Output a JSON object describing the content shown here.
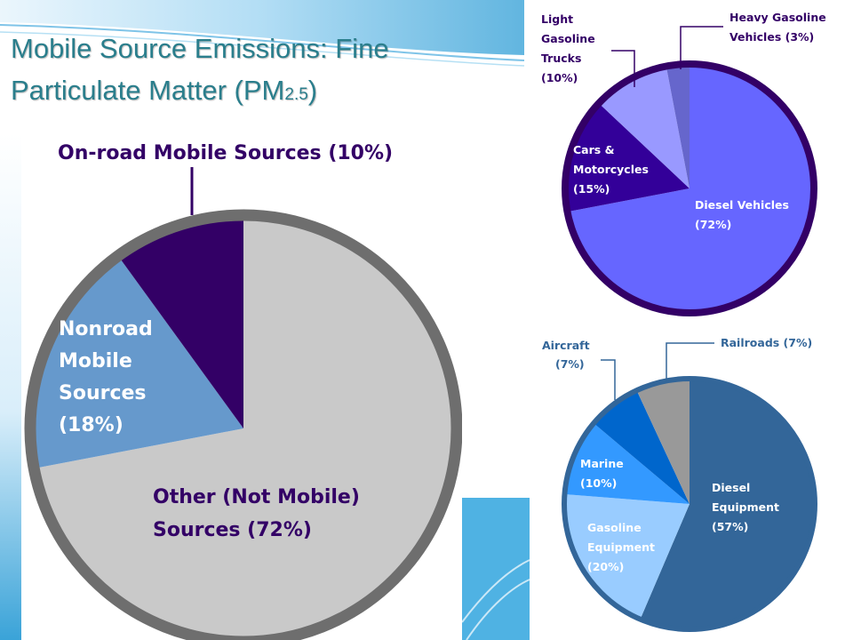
{
  "title": {
    "line1": "Mobile Source Emissions: Fine",
    "line2": "Particulate Matter (PM",
    "subscript": "2.5",
    "close": ")"
  },
  "colors": {
    "title": "#2a7e8c",
    "background_swoosh": "#3aa3d8"
  },
  "chart_data": [
    {
      "type": "pie",
      "title": "",
      "slices": [
        {
          "label": "Other (Not Mobile) Sources (72%)",
          "value": 72,
          "color": "#c9c9c9"
        },
        {
          "label": "Nonroad Mobile Sources (18%)",
          "value": 18,
          "color": "#6699cc"
        },
        {
          "label": "On-road Mobile Sources (10%)",
          "value": 10,
          "color": "#330066"
        }
      ],
      "labels_text": {
        "onroad": "On-road Mobile Sources (10%)",
        "nonroad": [
          "Nonroad",
          "Mobile",
          "Sources",
          "(18%)"
        ],
        "other": [
          "Other (Not Mobile)",
          "Sources (72%)"
        ]
      }
    },
    {
      "type": "pie",
      "title": "",
      "slices": [
        {
          "label": "Diesel Vehicles (72%)",
          "value": 72,
          "color": "#6666ff"
        },
        {
          "label": "Cars & Motorcycles (15%)",
          "value": 15,
          "color": "#330099"
        },
        {
          "label": "Light Gasoline Trucks (10%)",
          "value": 10,
          "color": "#9999ff"
        },
        {
          "label": "Heavy Gasoline Vehicles (3%)",
          "value": 3,
          "color": "#6666cc"
        }
      ],
      "labels_text": {
        "diesel": [
          "Diesel Vehicles",
          "(72%)"
        ],
        "cars": [
          "Cars &",
          "Motorcycles",
          "(15%)"
        ],
        "light": [
          "Light",
          "Gasoline",
          "Trucks",
          "(10%)"
        ],
        "heavy": [
          "Heavy Gasoline",
          "Vehicles (3%)"
        ]
      }
    },
    {
      "type": "pie",
      "title": "",
      "slices": [
        {
          "label": "Diesel Equipment (57%)",
          "value": 57,
          "color": "#336699"
        },
        {
          "label": "Gasoline Equipment (20%)",
          "value": 20,
          "color": "#99ccff"
        },
        {
          "label": "Marine (10%)",
          "value": 10,
          "color": "#3399ff"
        },
        {
          "label": "Aircraft (7%)",
          "value": 7,
          "color": "#0066cc"
        },
        {
          "label": "Railroads (7%)",
          "value": 7,
          "color": "#999999"
        }
      ],
      "labels_text": {
        "diesel": [
          "Diesel",
          "Equipment",
          "(57%)"
        ],
        "gasoline": [
          "Gasoline",
          "Equipment",
          "(20%)"
        ],
        "marine": [
          "Marine",
          "(10%)"
        ],
        "aircraft": [
          "Aircraft",
          "(7%)"
        ],
        "railroads": "Railroads (7%)"
      }
    }
  ]
}
